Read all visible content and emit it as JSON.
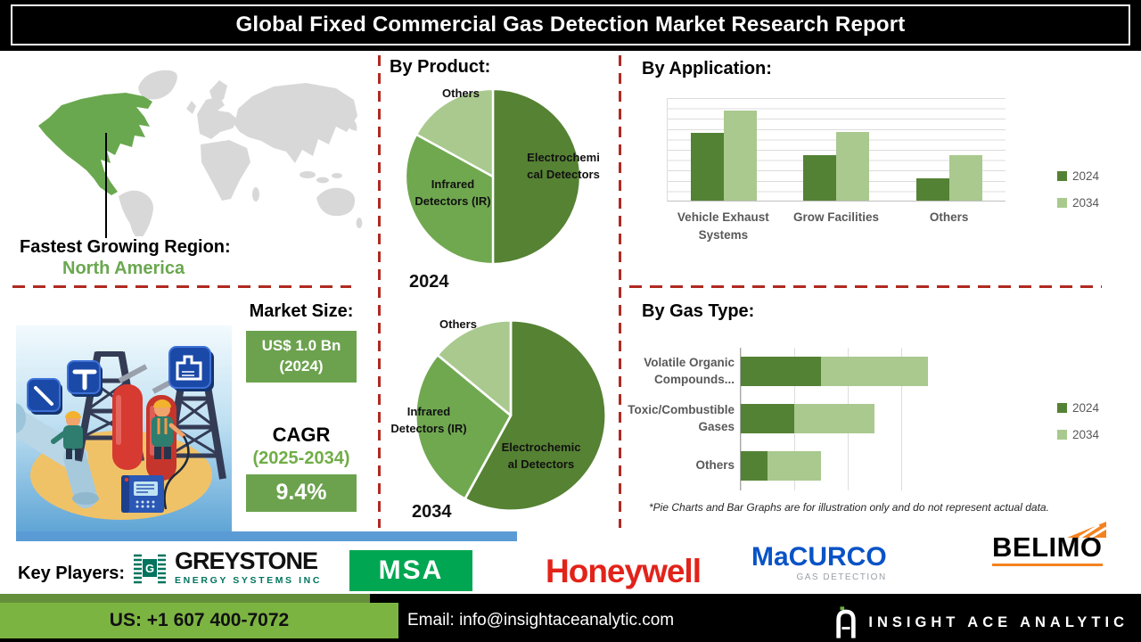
{
  "title": "Global Fixed Commercial Gas Detection Market Research Report",
  "region": {
    "label": "Fastest Growing Region:",
    "value": "North America"
  },
  "sections": {
    "by_product": "By Product:",
    "by_application": "By Application:",
    "by_gas_type": "By Gas Type:"
  },
  "market_size": {
    "heading": "Market Size:",
    "value_line1": "US$ 1.0 Bn",
    "value_line2": "(2024)",
    "cagr_label": "CAGR",
    "cagr_period": "(2025-2034)",
    "cagr_value": "9.4%"
  },
  "footnote": "*Pie Charts and Bar Graphs are for illustration only and do not represent actual data.",
  "key_players": {
    "label": "Key Players:"
  },
  "logos": {
    "greystone": {
      "name": "GREYSTONE",
      "sub": "ENERGY SYSTEMS INC"
    },
    "msa": "MSA",
    "honeywell": "Honeywell",
    "macurco": {
      "name": "MaCURCO",
      "sub": "GAS DETECTION"
    },
    "belimo": "BELIMO"
  },
  "footer": {
    "phone": "US: +1 607 400-7072",
    "email": "Email: info@insightaceanalytic.com",
    "brand": "INSIGHT ACE ANALYTIC"
  },
  "colors": {
    "dark_green": "#548235",
    "mid_green": "#70A850",
    "light_green": "#A9C98E",
    "accent_red": "#B02A21",
    "na_green": "#6AA84F",
    "map_gray": "#D8D8D8",
    "box_green": "#6CA24E",
    "footer_green": "#7CB442",
    "divider_blue": "#5B9BD5"
  },
  "chart_data": [
    {
      "type": "pie",
      "title": "2024",
      "labels": [
        "Electrochemical Detectors",
        "Infrared Detectors (IR)",
        "Others"
      ],
      "values": [
        50,
        33,
        17
      ],
      "colors": [
        "#568233",
        "#70A850",
        "#A9C98E"
      ],
      "note": "illustrative"
    },
    {
      "type": "pie",
      "title": "2034",
      "labels": [
        "Electrochemical Detectors",
        "Infrared Detectors (IR)",
        "Others"
      ],
      "values": [
        58,
        28,
        14
      ],
      "colors": [
        "#568233",
        "#70A850",
        "#A9C98E"
      ],
      "note": "illustrative"
    },
    {
      "type": "bar",
      "title": "By Application:",
      "categories": [
        "Vehicle Exhaust Systems",
        "Grow Facilities",
        "Others"
      ],
      "series": [
        {
          "name": "2024",
          "values": [
            6.6,
            4.4,
            2.2
          ]
        },
        {
          "name": "2034",
          "values": [
            8.8,
            6.7,
            4.4
          ]
        }
      ],
      "ylim": [
        0,
        10
      ],
      "grid": true,
      "legend_position": "right",
      "note": "illustrative"
    },
    {
      "type": "bar-horizontal-stacked",
      "title": "By Gas Type:",
      "categories": [
        "Volatile Organic Compounds...",
        "Toxic/Combustible Gases",
        "Others"
      ],
      "series": [
        {
          "name": "2024",
          "values": [
            1.5,
            1.0,
            0.5
          ]
        },
        {
          "name": "2034",
          "values": [
            2.0,
            1.5,
            1.0
          ]
        }
      ],
      "xlim": [
        0,
        4
      ],
      "grid": true,
      "legend_position": "right",
      "note": "illustrative"
    }
  ]
}
